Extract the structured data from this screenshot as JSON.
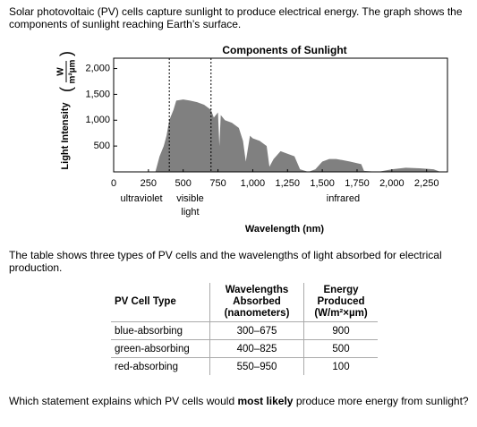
{
  "intro": "Solar photovoltaic (PV) cells capture sunlight to produce electrical energy. The graph shows the components of sunlight reaching Earth’s surface.",
  "chart_data": {
    "type": "area",
    "title": "Components of Sunlight",
    "x_label": "Wavelength (nm)",
    "y_label": "Light Intensity",
    "y_unit_top": "W",
    "y_unit_bottom": "m²µm",
    "color": "#808080",
    "x": [
      300,
      330,
      360,
      380,
      400,
      430,
      450,
      500,
      550,
      600,
      650,
      700,
      720,
      750,
      760,
      770,
      800,
      850,
      900,
      930,
      950,
      980,
      1000,
      1050,
      1100,
      1120,
      1150,
      1200,
      1250,
      1300,
      1340,
      1400,
      1450,
      1500,
      1550,
      1600,
      1700,
      1780,
      1800,
      1900,
      2000,
      2100,
      2200,
      2300,
      2350
    ],
    "values": [
      0,
      300,
      500,
      700,
      1000,
      1200,
      1380,
      1400,
      1380,
      1350,
      1300,
      1200,
      1050,
      1150,
      500,
      1100,
      1000,
      950,
      850,
      600,
      200,
      700,
      650,
      600,
      500,
      100,
      250,
      400,
      350,
      300,
      50,
      0,
      50,
      200,
      250,
      250,
      200,
      150,
      20,
      0,
      50,
      80,
      70,
      50,
      0
    ],
    "xlim": [
      0,
      2400
    ],
    "ylim": [
      0,
      2200
    ],
    "xticks": [
      0,
      250,
      500,
      750,
      {
        "value": 1000,
        "label": "1,000"
      },
      {
        "value": 1250,
        "label": "1,250"
      },
      {
        "value": 1500,
        "label": "1,500"
      },
      {
        "value": 1750,
        "label": "1,750"
      },
      {
        "value": 2000,
        "label": "2,000"
      },
      {
        "value": 2250,
        "label": "2,250"
      }
    ],
    "yticks": [
      500,
      {
        "value": 1000,
        "label": "1,000"
      },
      {
        "value": 1500,
        "label": "1,500"
      },
      {
        "value": 2000,
        "label": "2,000"
      }
    ],
    "boundaries": [
      400,
      700
    ],
    "regions": [
      {
        "label": "ultraviolet",
        "x": 200
      },
      {
        "label": "visible",
        "x": 550
      },
      {
        "label": "light",
        "x": 550
      },
      {
        "label": "infrared",
        "x": 1650
      }
    ]
  },
  "table_intro": "The table shows three types of PV cells and the wavelengths of light absorbed for electrical production.",
  "table": {
    "headers": [
      [
        "PV Cell Type"
      ],
      [
        "Wavelengths",
        "Absorbed",
        "(nanometers)"
      ],
      [
        "Energy",
        "Produced",
        "(W/m²×µm)"
      ]
    ],
    "rows": [
      [
        "blue-absorbing",
        "300–675",
        "900"
      ],
      [
        "green-absorbing",
        "400–825",
        "500"
      ],
      [
        "red-absorbing",
        "550–950",
        "100"
      ]
    ]
  },
  "question": {
    "before": "Which statement explains which PV cells would ",
    "bold": "most likely",
    "after": " produce more energy from sunlight?"
  }
}
